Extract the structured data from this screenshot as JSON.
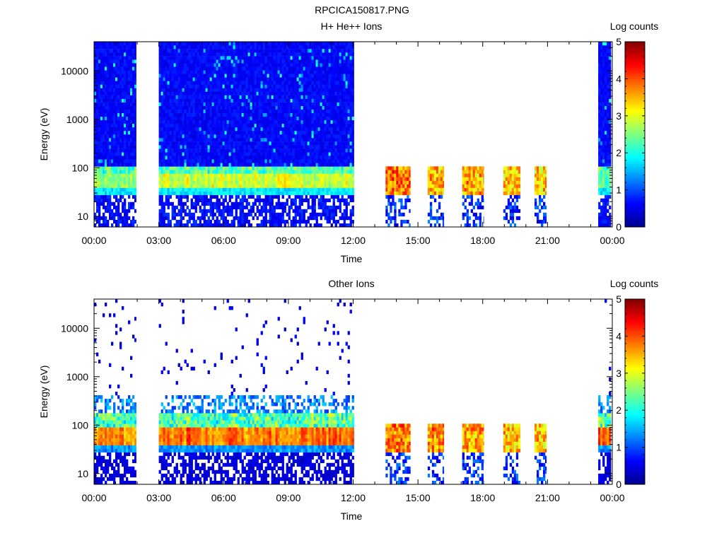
{
  "page": {
    "title": "RPCICA150817.PNG"
  },
  "colorbar": {
    "ticks": [
      "0",
      "1",
      "2",
      "3",
      "4",
      "5"
    ]
  },
  "chart_data": [
    {
      "type": "heatmap",
      "title": "H+ He++ Ions",
      "xlabel": "Time",
      "ylabel": "Energy (eV)",
      "x_ticks": [
        "00:00",
        "03:00",
        "06:00",
        "09:00",
        "12:00",
        "15:00",
        "18:00",
        "21:00",
        "00:00"
      ],
      "xlim_hours": [
        0,
        24
      ],
      "y_scale": "log",
      "y_ticks": [
        "10",
        "100",
        "1000",
        "10000"
      ],
      "ylim": [
        6,
        40000
      ],
      "colorbar_label": "Log counts",
      "colorbar_range": [
        0,
        5
      ],
      "data_segments": [
        {
          "start_h": 0.0,
          "end_h": 1.95,
          "mode": "full",
          "band_log": 2.6
        },
        {
          "start_h": 3.0,
          "end_h": 12.05,
          "mode": "full",
          "band_log": 2.9
        },
        {
          "start_h": 13.5,
          "end_h": 14.65,
          "mode": "burst",
          "band_log": 4.1
        },
        {
          "start_h": 15.45,
          "end_h": 16.2,
          "mode": "burst",
          "band_log": 3.8
        },
        {
          "start_h": 17.05,
          "end_h": 18.05,
          "mode": "burst",
          "band_log": 3.8
        },
        {
          "start_h": 18.95,
          "end_h": 19.75,
          "mode": "burst",
          "band_log": 3.6
        },
        {
          "start_h": 20.4,
          "end_h": 20.95,
          "mode": "burst",
          "band_log": 3.6
        },
        {
          "start_h": 23.35,
          "end_h": 23.95,
          "mode": "full",
          "band_log": 2.2
        }
      ]
    },
    {
      "type": "heatmap",
      "title": "Other Ions",
      "xlabel": "Time",
      "ylabel": "Energy (eV)",
      "x_ticks": [
        "00:00",
        "03:00",
        "06:00",
        "09:00",
        "12:00",
        "15:00",
        "18:00",
        "21:00",
        "00:00"
      ],
      "xlim_hours": [
        0,
        24
      ],
      "y_scale": "log",
      "y_ticks": [
        "10",
        "100",
        "1000",
        "10000"
      ],
      "ylim": [
        6,
        40000
      ],
      "colorbar_label": "Log counts",
      "colorbar_range": [
        0,
        5
      ],
      "data_segments": [
        {
          "start_h": 0.0,
          "end_h": 1.95,
          "mode": "sparse",
          "band_log": 3.7
        },
        {
          "start_h": 3.0,
          "end_h": 12.05,
          "mode": "sparse",
          "band_log": 3.8
        },
        {
          "start_h": 13.5,
          "end_h": 14.65,
          "mode": "burst",
          "band_log": 4.0
        },
        {
          "start_h": 15.45,
          "end_h": 16.2,
          "mode": "burst",
          "band_log": 3.9
        },
        {
          "start_h": 17.05,
          "end_h": 18.05,
          "mode": "burst",
          "band_log": 3.8
        },
        {
          "start_h": 18.95,
          "end_h": 19.75,
          "mode": "burst",
          "band_log": 3.7
        },
        {
          "start_h": 20.4,
          "end_h": 20.95,
          "mode": "burst",
          "band_log": 3.7
        },
        {
          "start_h": 23.35,
          "end_h": 23.95,
          "mode": "sparse",
          "band_log": 3.9
        }
      ]
    }
  ]
}
